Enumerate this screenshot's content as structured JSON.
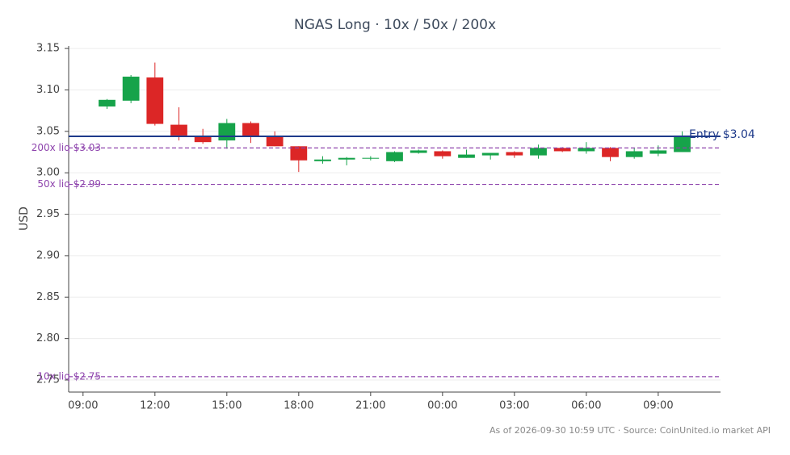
{
  "chart_data": {
    "type": "candlestick",
    "title": "NGAS Long · 10x / 50x / 200x",
    "y_label": "USD",
    "footnote": "As of 2026-09-30 10:59 UTC · Source: CoinUnited.io market API",
    "x": [
      10,
      11,
      12,
      13,
      14,
      15,
      16,
      17,
      18,
      19,
      20,
      21,
      22,
      23,
      24,
      25,
      26,
      27,
      28,
      29,
      30,
      31,
      32,
      33,
      34
    ],
    "open": [
      3.08,
      3.087,
      3.115,
      3.058,
      3.044,
      3.039,
      3.06,
      3.044,
      3.032,
      3.014,
      3.016,
      3.017,
      3.014,
      3.024,
      3.026,
      3.018,
      3.021,
      3.025,
      3.021,
      3.03,
      3.026,
      3.03,
      3.019,
      3.023,
      3.025
    ],
    "high": [
      3.089,
      3.118,
      3.133,
      3.079,
      3.053,
      3.065,
      3.062,
      3.05,
      3.032,
      3.02,
      3.019,
      3.02,
      3.026,
      3.028,
      3.027,
      3.028,
      3.024,
      3.026,
      3.034,
      3.031,
      3.037,
      3.031,
      3.03,
      3.033,
      3.05
    ],
    "low": [
      3.077,
      3.084,
      3.057,
      3.039,
      3.035,
      3.029,
      3.036,
      3.032,
      3.001,
      3.011,
      3.009,
      3.015,
      3.013,
      3.023,
      3.017,
      3.018,
      3.016,
      3.018,
      3.017,
      3.025,
      3.023,
      3.014,
      3.017,
      3.02,
      3.025
    ],
    "close": [
      3.088,
      3.116,
      3.059,
      3.045,
      3.037,
      3.06,
      3.044,
      3.032,
      3.015,
      3.016,
      3.018,
      3.018,
      3.025,
      3.027,
      3.02,
      3.022,
      3.024,
      3.021,
      3.03,
      3.026,
      3.03,
      3.019,
      3.026,
      3.027,
      3.045
    ],
    "up_color": "#16a34a",
    "down_color": "#dc2626",
    "reference_lines": [
      {
        "label": "Entry $3.04",
        "value": 3.044,
        "color": "#1e3a8a",
        "style": "solid"
      },
      {
        "label": "200x liq $3.03",
        "value": 3.03,
        "color": "#8e44ad",
        "style": "dashed"
      },
      {
        "label": "50x liq $2.99",
        "value": 2.986,
        "color": "#8e44ad",
        "style": "dashed"
      },
      {
        "label": "10x liq $2.75",
        "value": 2.754,
        "color": "#8e44ad",
        "style": "dashed"
      }
    ],
    "xlim": [
      8.4,
      35.6
    ],
    "xticks": [
      {
        "value": 9,
        "label": "09:00"
      },
      {
        "value": 12,
        "label": "12:00"
      },
      {
        "value": 15,
        "label": "15:00"
      },
      {
        "value": 18,
        "label": "18:00"
      },
      {
        "value": 21,
        "label": "21:00"
      },
      {
        "value": 24,
        "label": "00:00"
      },
      {
        "value": 27,
        "label": "03:00"
      },
      {
        "value": 30,
        "label": "06:00"
      },
      {
        "value": 33,
        "label": "09:00"
      }
    ],
    "ylim": [
      2.7354,
      3.153
    ],
    "yticks": [
      2.75,
      {
        "value": 2.8,
        "label": "2.80"
      },
      2.85,
      {
        "value": 2.9,
        "label": "2.90"
      },
      2.95,
      {
        "value": 3.0,
        "label": "3.00"
      },
      3.05,
      {
        "value": 3.1,
        "label": "3.10"
      },
      3.15
    ],
    "grid": true
  }
}
